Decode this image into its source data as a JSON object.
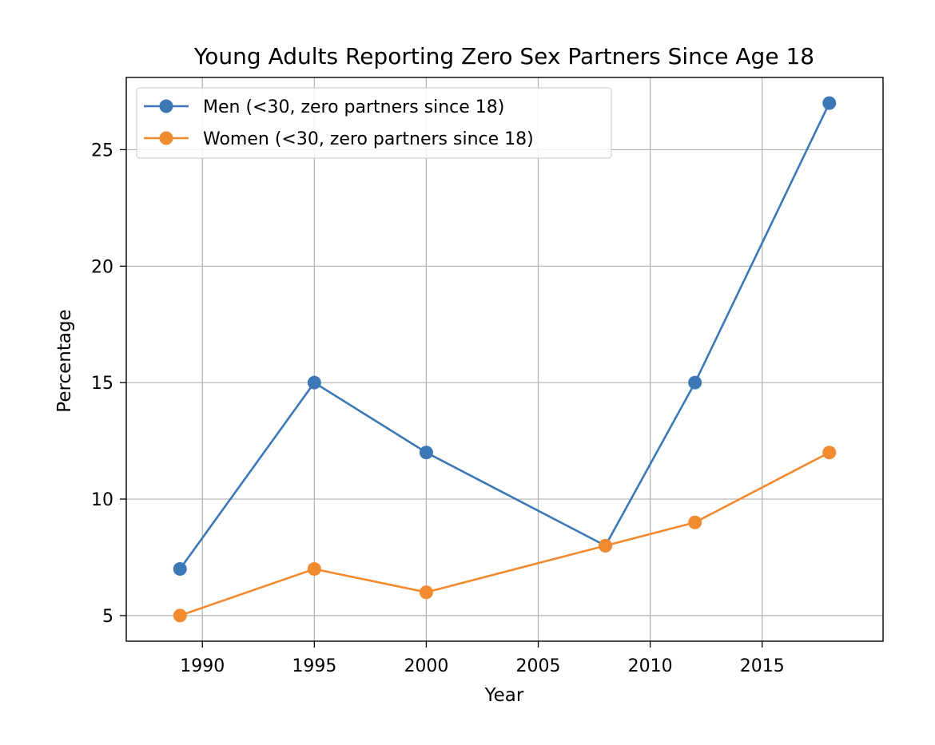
{
  "chart_data": {
    "type": "line",
    "title": "Young Adults Reporting Zero Sex Partners Since Age 18",
    "xlabel": "Year",
    "ylabel": "Percentage",
    "xlim": [
      1986.6,
      2020.4
    ],
    "ylim": [
      3.9,
      28.1
    ],
    "xticks": [
      1990,
      1995,
      2000,
      2005,
      2010,
      2015
    ],
    "yticks": [
      5,
      10,
      15,
      20,
      25
    ],
    "grid": true,
    "legend_position": "top-left",
    "x": [
      1989,
      1995,
      2000,
      2008,
      2012,
      2018
    ],
    "series": [
      {
        "name": "Men (<30, zero partners since 18)",
        "color": "#3b78b5",
        "values": [
          7,
          15,
          12,
          8,
          15,
          27
        ]
      },
      {
        "name": "Women (<30, zero partners since 18)",
        "color": "#f28a30",
        "values": [
          5,
          7,
          6,
          8,
          9,
          12
        ]
      }
    ]
  }
}
